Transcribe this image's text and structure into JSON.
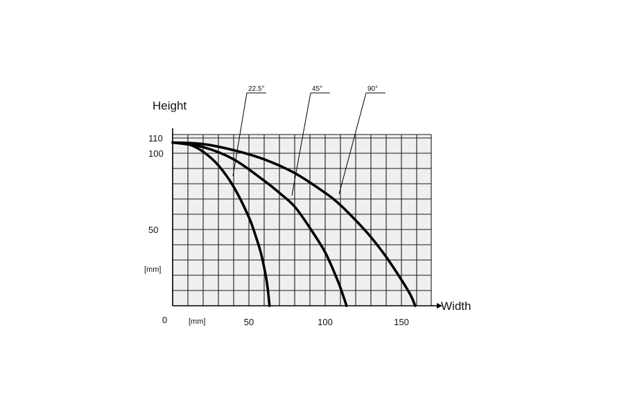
{
  "chart_data": {
    "type": "line",
    "ylabel": "Height",
    "xlabel": "Width",
    "x_unit": "[mm]",
    "y_unit": "[mm]",
    "origin_label": "0",
    "xlim": [
      0,
      167
    ],
    "ylim": [
      0,
      110
    ],
    "x_ticks": [
      50,
      100,
      150
    ],
    "y_ticks": [
      50,
      100,
      110
    ],
    "grid": true,
    "series": [
      {
        "name": "22.5°",
        "points": [
          [
            0,
            107
          ],
          [
            10,
            106
          ],
          [
            20,
            101
          ],
          [
            30,
            92
          ],
          [
            40,
            78
          ],
          [
            50,
            58
          ],
          [
            55,
            44
          ],
          [
            58,
            34
          ],
          [
            61,
            20
          ],
          [
            62.5,
            10
          ],
          [
            63.5,
            0
          ]
        ]
      },
      {
        "name": "45°",
        "points": [
          [
            0,
            107
          ],
          [
            20,
            104
          ],
          [
            40,
            96
          ],
          [
            60,
            82
          ],
          [
            70,
            74
          ],
          [
            80,
            65
          ],
          [
            90,
            51
          ],
          [
            100,
            35
          ],
          [
            108,
            17
          ],
          [
            112,
            6
          ],
          [
            114,
            0
          ]
        ]
      },
      {
        "name": "90°",
        "points": [
          [
            0,
            107
          ],
          [
            20,
            106
          ],
          [
            40,
            102
          ],
          [
            60,
            96
          ],
          [
            80,
            87
          ],
          [
            100,
            74
          ],
          [
            110,
            66
          ],
          [
            120,
            56
          ],
          [
            130,
            45
          ],
          [
            140,
            32
          ],
          [
            150,
            17
          ],
          [
            156,
            7
          ],
          [
            159,
            0
          ]
        ]
      }
    ]
  }
}
